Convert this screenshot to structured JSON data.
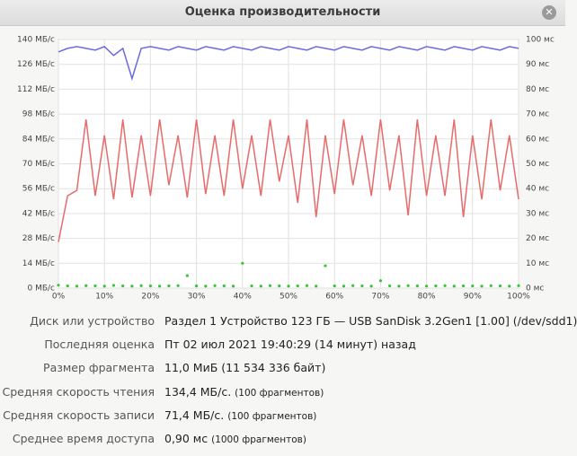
{
  "header": {
    "title": "Оценка производительности"
  },
  "chart_data": {
    "type": "line",
    "x": [
      0,
      2,
      4,
      6,
      8,
      10,
      12,
      14,
      16,
      18,
      20,
      22,
      24,
      26,
      28,
      30,
      32,
      34,
      36,
      38,
      40,
      42,
      44,
      46,
      48,
      50,
      52,
      54,
      56,
      58,
      60,
      62,
      64,
      66,
      68,
      70,
      72,
      74,
      76,
      78,
      80,
      82,
      84,
      86,
      88,
      90,
      92,
      94,
      96,
      98,
      100
    ],
    "series": [
      {
        "color": "#6b6be0",
        "values": [
          133,
          135,
          136,
          135,
          134,
          136,
          131,
          135,
          118,
          135,
          136,
          135,
          134,
          136,
          135,
          134,
          136,
          135,
          134,
          136,
          135,
          134,
          136,
          135,
          134,
          136,
          135,
          134,
          136,
          135,
          134,
          136,
          135,
          134,
          136,
          135,
          134,
          136,
          135,
          134,
          136,
          135,
          134,
          136,
          135,
          134,
          136,
          135,
          134,
          136,
          135
        ]
      },
      {
        "color": "#e86a6a",
        "values": [
          26,
          52,
          55,
          95,
          52,
          86,
          50,
          95,
          51,
          86,
          52,
          95,
          58,
          86,
          51,
          95,
          53,
          86,
          52,
          95,
          56,
          86,
          52,
          95,
          60,
          86,
          48,
          95,
          40,
          86,
          53,
          95,
          58,
          86,
          52,
          95,
          55,
          86,
          41,
          95,
          52,
          86,
          52,
          95,
          40,
          86,
          50,
          95,
          55,
          86,
          50
        ]
      },
      {
        "color": "#3ac43a",
        "axis": "y2",
        "values": [
          1.2,
          0.9,
          0.8,
          1.0,
          0.9,
          0.8,
          1.1,
          0.9,
          0.8,
          1.0,
          0.9,
          0.8,
          0.9,
          1.0,
          5,
          0.9,
          0.8,
          1.0,
          0.9,
          0.8,
          10,
          0.9,
          0.8,
          1.0,
          0.9,
          0.8,
          0.9,
          1.0,
          0.8,
          9,
          0.9,
          0.8,
          1.0,
          0.9,
          0.8,
          3,
          0.9,
          0.8,
          1.0,
          0.9,
          0.8,
          0.9,
          1.0,
          0.8,
          0.9,
          0.9,
          0.8,
          1.0,
          0.9,
          0.8,
          1.0
        ]
      }
    ],
    "xlim": [
      0,
      100
    ],
    "xticks": [
      {
        "value": 0,
        "label": "0%"
      },
      {
        "value": 10,
        "label": "10%"
      },
      {
        "value": 20,
        "label": "20%"
      },
      {
        "value": 30,
        "label": "30%"
      },
      {
        "value": 40,
        "label": "40%"
      },
      {
        "value": 50,
        "label": "50%"
      },
      {
        "value": 60,
        "label": "60%"
      },
      {
        "value": 70,
        "label": "70%"
      },
      {
        "value": 80,
        "label": "80%"
      },
      {
        "value": 90,
        "label": "90%"
      },
      {
        "value": 100,
        "label": "100%"
      }
    ],
    "ylim": [
      0,
      140
    ],
    "yticks": [
      {
        "value": 0,
        "label": "0 МБ/с"
      },
      {
        "value": 14,
        "label": "14 МБ/с"
      },
      {
        "value": 28,
        "label": "28 МБ/с"
      },
      {
        "value": 42,
        "label": "42 МБ/с"
      },
      {
        "value": 56,
        "label": "56 МБ/с"
      },
      {
        "value": 70,
        "label": "70 МБ/с"
      },
      {
        "value": 84,
        "label": "84 МБ/с"
      },
      {
        "value": 98,
        "label": "98 МБ/с"
      },
      {
        "value": 112,
        "label": "112 МБ/с"
      },
      {
        "value": 126,
        "label": "126 МБ/с"
      },
      {
        "value": 140,
        "label": "140 МБ/с"
      }
    ],
    "y2lim": [
      0,
      100
    ],
    "y2ticks": [
      {
        "value": 0,
        "label": "0 мс"
      },
      {
        "value": 10,
        "label": "10 мс"
      },
      {
        "value": 20,
        "label": "20 мс"
      },
      {
        "value": 30,
        "label": "30 мс"
      },
      {
        "value": 40,
        "label": "40 мс"
      },
      {
        "value": 50,
        "label": "50 мс"
      },
      {
        "value": 60,
        "label": "60 мс"
      },
      {
        "value": 70,
        "label": "70 мс"
      },
      {
        "value": 80,
        "label": "80 мс"
      },
      {
        "value": 90,
        "label": "90 мс"
      },
      {
        "value": 100,
        "label": "100 мс"
      }
    ],
    "grid": true
  },
  "info": [
    {
      "label": "Диск или устройство",
      "value": "Раздел 1 Устройство 123 ГБ — USB SanDisk 3.2Gen1 [1.00] (/dev/sdd1)"
    },
    {
      "label": "Последняя оценка",
      "value": "Пт 02 июл 2021 19:40:29 (14 минут) назад"
    },
    {
      "label": "Размер фрагмента",
      "value": "11,0 МиБ (11 534 336 байт)"
    },
    {
      "label": "Средняя скорость чтения",
      "value": "134,4 МБ/с.",
      "note": "(100 фрагментов)"
    },
    {
      "label": "Средняя скорость записи",
      "value": "71,4 МБ/с.",
      "note": "(100 фрагментов)"
    },
    {
      "label": "Среднее время доступа",
      "value": "0,90 мс",
      "note": "(1000 фрагментов)"
    }
  ]
}
